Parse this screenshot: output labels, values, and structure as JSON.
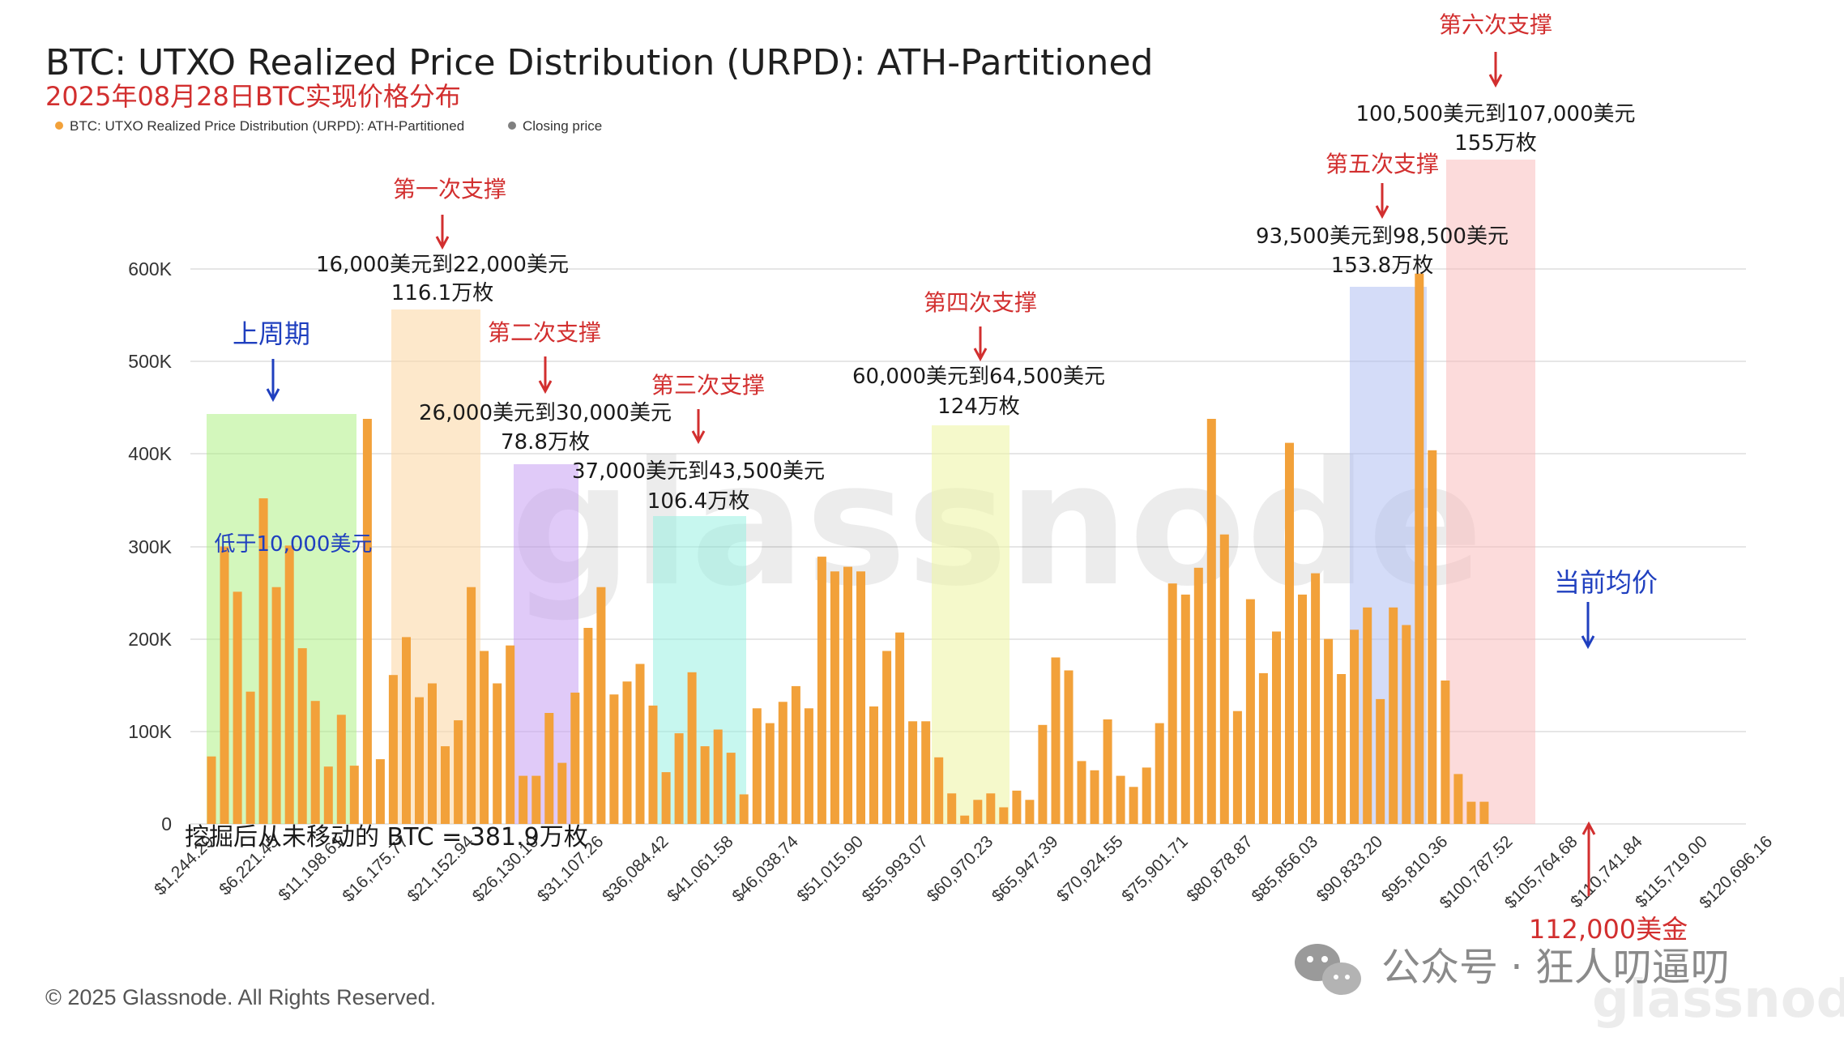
{
  "title": "BTC: UTXO Realized Price Distribution (URPD): ATH-Partitioned",
  "subtitle": "2025年08月28日BTC实现价格分布",
  "legend": [
    {
      "label": "BTC: UTXO Realized Price Distribution (URPD): ATH-Partitioned",
      "color": "#f2a13a"
    },
    {
      "label": "Closing price",
      "color": "#808080"
    }
  ],
  "copyright": "© 2025 Glassnode. All Rights Reserved.",
  "watermark": "glassnode",
  "wechat_label": "公众号 · 狂人叨逼叨",
  "colors": {
    "bar": "#f2a13a",
    "closing_bar": "#808080",
    "annotation_red": "#d22f2f",
    "annotation_blue": "#1f3fbf",
    "grid": "#e6e6e6"
  },
  "annotations": {
    "cycle": "上周期",
    "below_10k": "低于10,000美元",
    "s1_title": "第一次支撑",
    "s1_range": "16,000美元到22,000美元",
    "s1_amount": "116.1万枚",
    "s2_title": "第二次支撑",
    "s2_range": "26,000美元到30,000美元",
    "s2_amount": "78.8万枚",
    "s3_title": "第三次支撑",
    "s3_range": "37,000美元到43,500美元",
    "s3_amount": "106.4万枚",
    "s4_title": "第四次支撑",
    "s4_range": "60,000美元到64,500美元",
    "s4_amount": "124万枚",
    "s5_title": "第五次支撑",
    "s5_range": "93,500美元到98,500美元",
    "s5_amount": "153.8万枚",
    "s6_title": "第六次支撑",
    "s6_range": "100,500美元到107,000美元",
    "s6_amount": "155万枚",
    "current_avg": "当前均价",
    "closing_price": "112,000美金",
    "never_moved": "挖掘后从未移动的 BTC = 381.9万枚"
  },
  "chart_data": {
    "type": "bar",
    "ylim": [
      0,
      600000
    ],
    "y_ticks": [
      "0",
      "100K",
      "200K",
      "300K",
      "400K",
      "500K",
      "600K"
    ],
    "x_tick_labels": [
      "$1,244.29",
      "$6,221.45",
      "$11,198.61",
      "$16,175.77",
      "$21,152.94",
      "$26,130.10",
      "$31,107.26",
      "$36,084.42",
      "$41,061.58",
      "$46,038.74",
      "$51,015.90",
      "$55,993.07",
      "$60,970.23",
      "$65,947.39",
      "$70,924.55",
      "$75,901.71",
      "$80,878.87",
      "$85,856.03",
      "$90,833.20",
      "$95,810.36",
      "$100,787.52",
      "$105,764.68",
      "$110,741.84",
      "$115,719.00",
      "$120,696.16"
    ],
    "bin_width": 995.43,
    "closing_price_bin_index": 111,
    "series": [
      {
        "values": [
          73000,
          300000,
          251000,
          143000,
          352000,
          256000,
          301000,
          190000,
          133000,
          62000,
          118000,
          63000,
          438000,
          70000,
          161000,
          202000,
          137000,
          152000,
          84000,
          112000,
          256000,
          187000,
          152000,
          193000,
          52000,
          52000,
          120000,
          66000,
          142000,
          212000,
          256000,
          140000,
          154000,
          173000,
          128000,
          56000,
          98000,
          164000,
          84000,
          102000,
          77000,
          32000,
          125000,
          109000,
          132000,
          149000,
          125000,
          289000,
          273000,
          278000,
          273000,
          127000,
          187000,
          207000,
          111000,
          111000,
          72000,
          33000,
          9000,
          26000,
          33000,
          18000,
          36000,
          26000,
          107000,
          180000,
          166000,
          68000,
          58000,
          113000,
          52000,
          40000,
          61000,
          109000,
          260000,
          248000,
          277000,
          438000,
          313000,
          122000,
          243000,
          163000,
          208000,
          412000,
          248000,
          271000,
          200000,
          162000,
          210000,
          234000,
          135000,
          234000,
          215000,
          595000,
          404000,
          155000,
          54000,
          24000,
          24000
        ]
      }
    ]
  }
}
